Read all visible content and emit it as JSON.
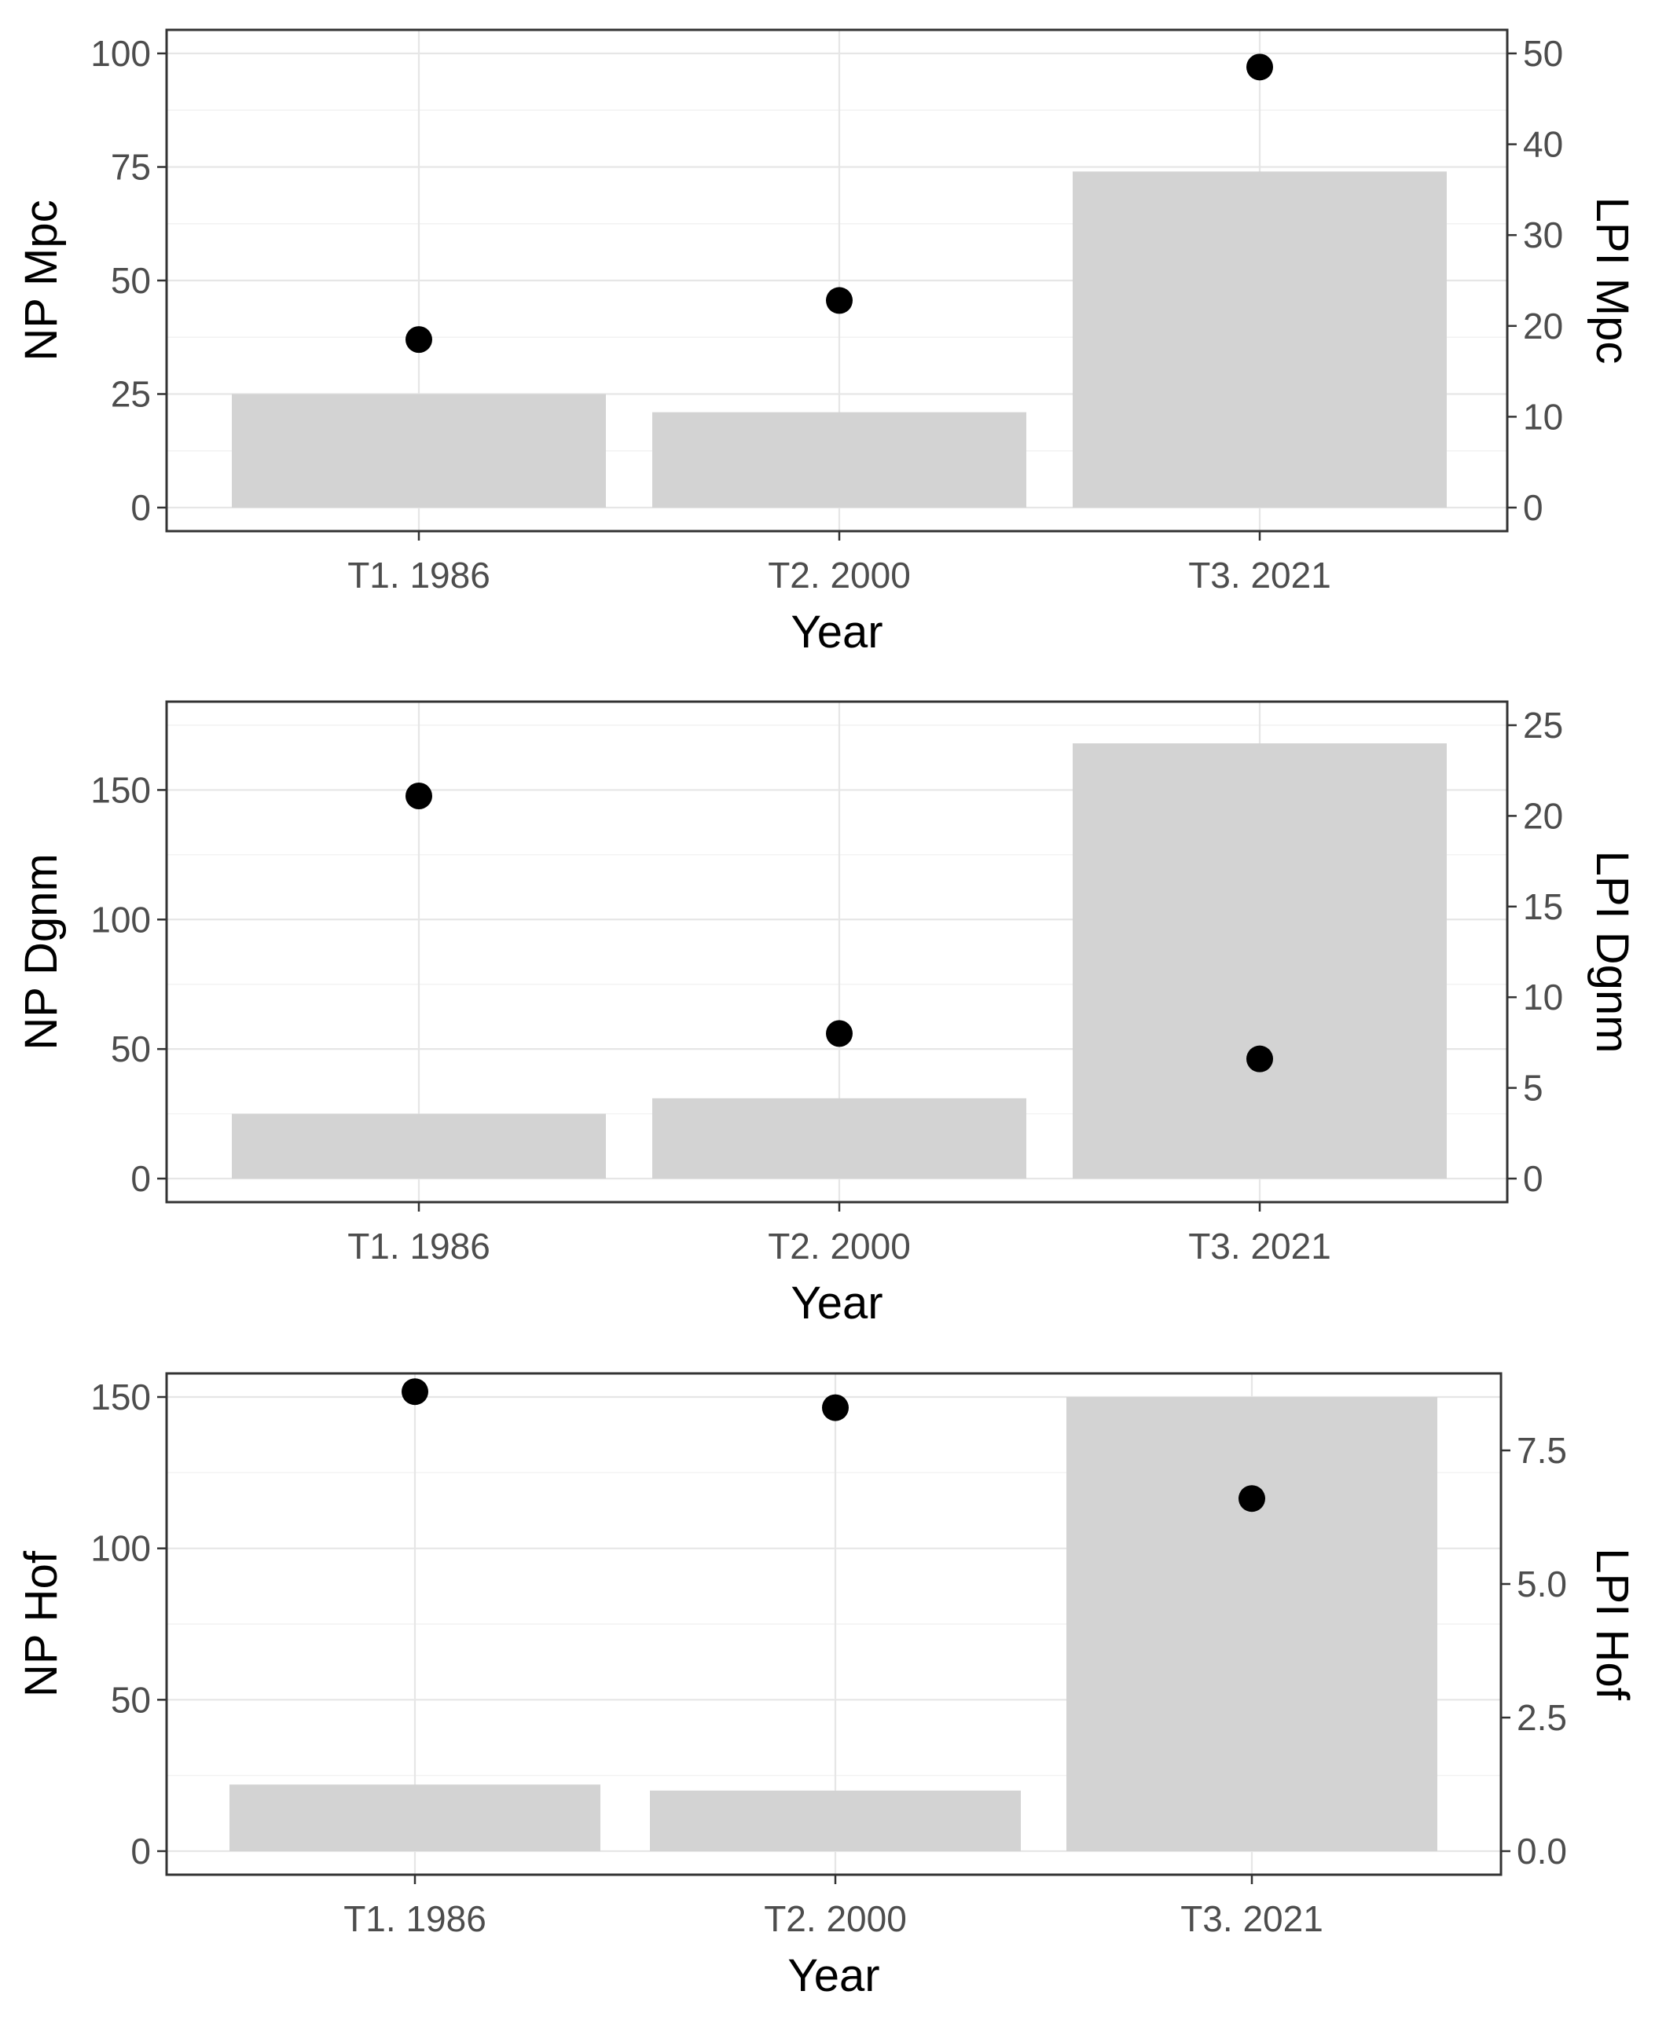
{
  "chart_data": [
    {
      "type": "bar",
      "categories": [
        "T1. 1986",
        "T2. 2000",
        "T3. 2021"
      ],
      "xlabel": "Year",
      "ylabel": "NP Mpc",
      "y2label": "LPI Mpc",
      "ylim": [
        0,
        100
      ],
      "y2lim": [
        0,
        50
      ],
      "yticks": [
        "0",
        "25",
        "50",
        "75",
        "100"
      ],
      "y2ticks": [
        "0",
        "10",
        "20",
        "30",
        "40",
        "50"
      ],
      "series": [
        {
          "axis": "left",
          "mark": "bar",
          "values": [
            25,
            21,
            74
          ]
        },
        {
          "axis": "right",
          "mark": "point",
          "values": [
            18.5,
            22.8,
            48.5
          ]
        }
      ],
      "grid": true,
      "colors": {
        "bar": "#d3d3d3",
        "point": "#000000"
      }
    },
    {
      "type": "bar",
      "categories": [
        "T1. 1986",
        "T2. 2000",
        "T3. 2021"
      ],
      "xlabel": "Year",
      "ylabel": "NP Dgnm",
      "y2label": "LPI Dgnm",
      "ylim": [
        0,
        175
      ],
      "y2lim": [
        0,
        25
      ],
      "yticks": [
        "0",
        "50",
        "100",
        "150"
      ],
      "y2ticks": [
        "0",
        "5",
        "10",
        "15",
        "20",
        "25"
      ],
      "series": [
        {
          "axis": "left",
          "mark": "bar",
          "values": [
            25,
            31,
            168
          ]
        },
        {
          "axis": "right",
          "mark": "point",
          "values": [
            21.1,
            8.0,
            6.6
          ]
        }
      ],
      "grid": true,
      "colors": {
        "bar": "#d3d3d3",
        "point": "#000000"
      }
    },
    {
      "type": "bar",
      "categories": [
        "T1. 1986",
        "T2. 2000",
        "T3. 2021"
      ],
      "xlabel": "Year",
      "ylabel": "NP Hof",
      "y2label": "LPI Hof",
      "ylim": [
        0,
        150
      ],
      "y2lim": [
        0,
        8.5
      ],
      "yticks": [
        "0",
        "50",
        "100",
        "150"
      ],
      "y2ticks": [
        "0.0",
        "2.5",
        "5.0",
        "7.5"
      ],
      "series": [
        {
          "axis": "left",
          "mark": "bar",
          "values": [
            22,
            20,
            150
          ]
        },
        {
          "axis": "right",
          "mark": "point",
          "values": [
            8.6,
            8.3,
            6.6
          ]
        }
      ],
      "grid": true,
      "colors": {
        "bar": "#d3d3d3",
        "point": "#000000"
      }
    }
  ]
}
